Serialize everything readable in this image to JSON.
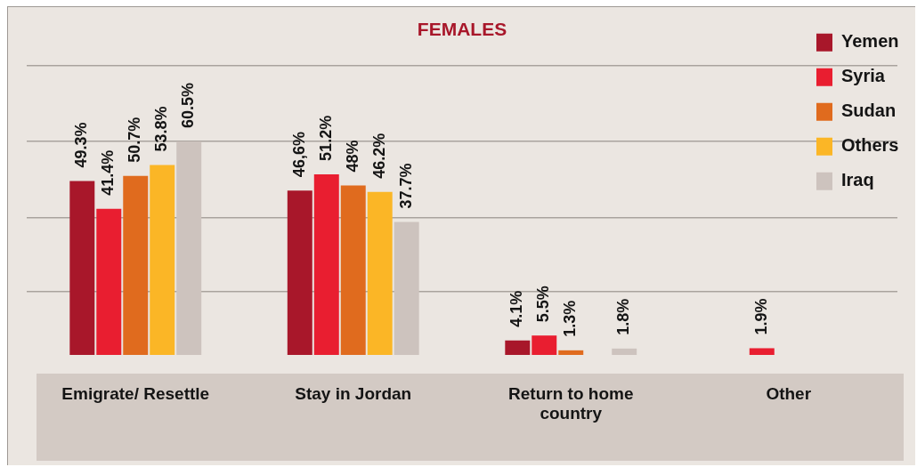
{
  "chart_data": {
    "type": "bar",
    "title": "FEMALES",
    "categories": [
      "Emigrate/ Resettle",
      "Stay in Jordan",
      "Return to home country",
      "Other"
    ],
    "series": [
      {
        "name": "Yemen",
        "color": "#a8172a",
        "values": [
          49.3,
          46.6,
          4.1,
          null
        ],
        "value_labels": [
          "49.3%",
          "46,6%",
          "4.1%",
          null
        ]
      },
      {
        "name": "Syria",
        "color": "#e91e30",
        "values": [
          41.4,
          51.2,
          5.5,
          1.9
        ],
        "value_labels": [
          "41.4%",
          "51.2%",
          "5.5%",
          "1.9%"
        ]
      },
      {
        "name": "Sudan",
        "color": "#e06b1e",
        "values": [
          50.7,
          48,
          1.3,
          null
        ],
        "value_labels": [
          "50.7%",
          "48%",
          "1.3%",
          null
        ]
      },
      {
        "name": "Others",
        "color": "#fbb626",
        "values": [
          53.8,
          46.2,
          null,
          null
        ],
        "value_labels": [
          "53.8%",
          "46.2%",
          null,
          null
        ]
      },
      {
        "name": "Iraq",
        "color": "#cdc3be",
        "values": [
          60.5,
          37.7,
          1.8,
          null
        ],
        "value_labels": [
          "60.5%",
          "37.7%",
          "1.8%",
          null
        ]
      }
    ],
    "ylim": [
      0,
      82
    ],
    "yticks": [
      {
        "value": 18,
        "label": null
      },
      {
        "value": 39,
        "label": null
      },
      {
        "value": 60.5,
        "label": null
      },
      {
        "value": 82,
        "label": null
      }
    ],
    "grid": "y",
    "legend": "top right",
    "tick_labels": "x"
  }
}
